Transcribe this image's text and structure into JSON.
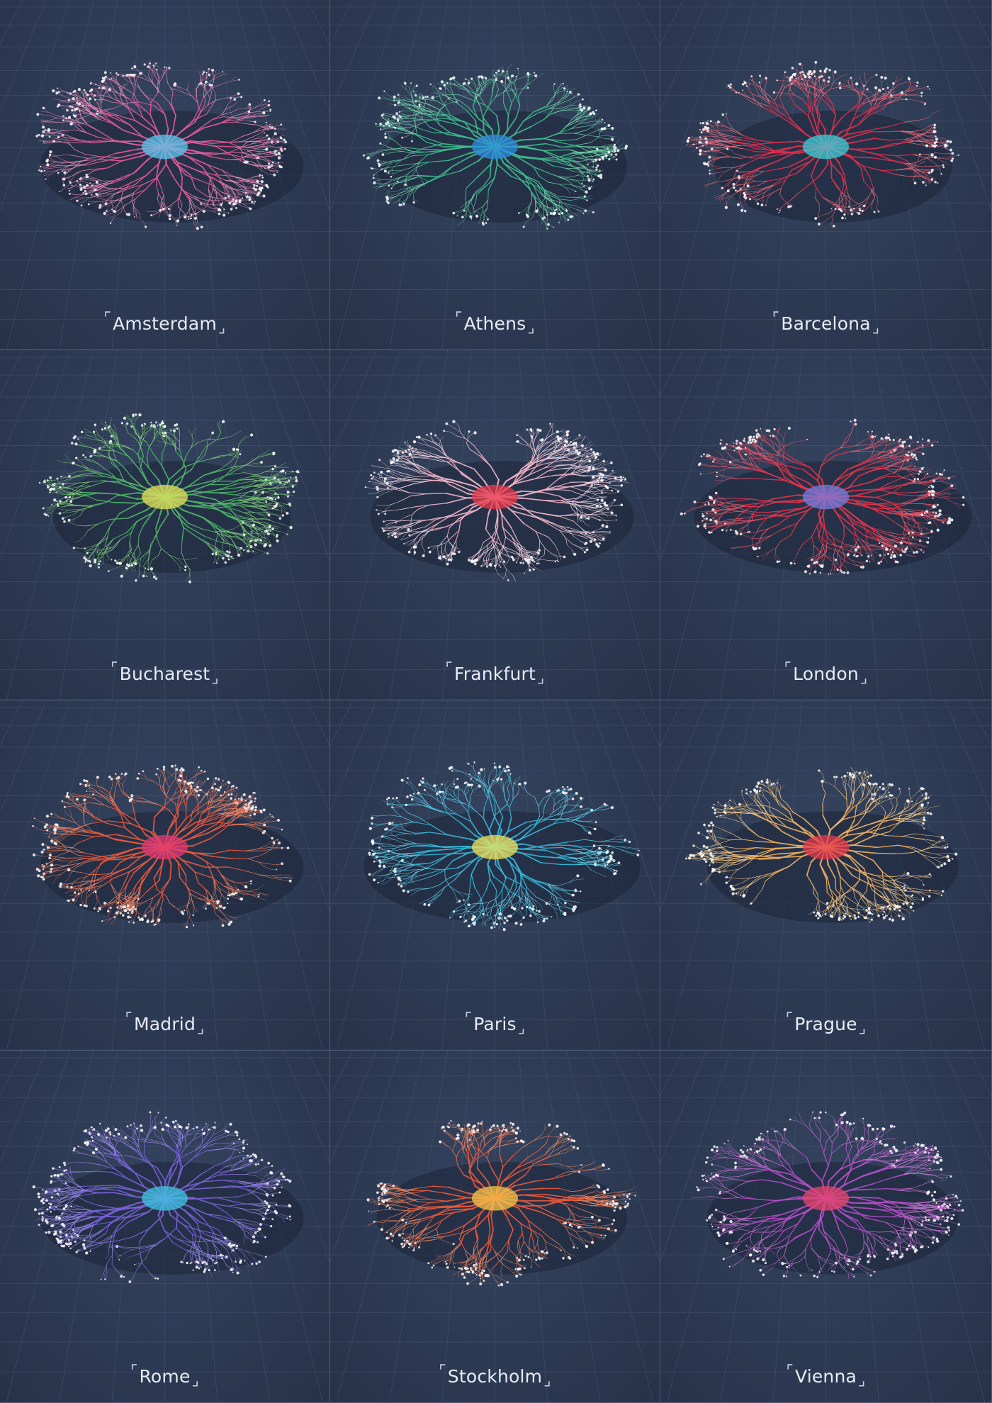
{
  "grid_line_color": "#4a5a78",
  "panels": [
    {
      "label": "Amsterdam",
      "colors": [
        "#e95a9c",
        "#f08bbd",
        "#5ac8ee"
      ],
      "spread": 1.0,
      "lean": 0.1
    },
    {
      "label": "Athens",
      "colors": [
        "#3fbf8f",
        "#6ed6a8",
        "#2f8fe0"
      ],
      "spread": 0.95,
      "lean": 0.0
    },
    {
      "label": "Barcelona",
      "colors": [
        "#e3304f",
        "#f26a7a",
        "#3ad0d8"
      ],
      "spread": 0.9,
      "lean": 0.0
    },
    {
      "label": "Bucharest",
      "colors": [
        "#4fb66a",
        "#7dce7a",
        "#e7e45a"
      ],
      "spread": 0.9,
      "lean": 0.0
    },
    {
      "label": "Frankfurt",
      "colors": [
        "#f3b5c9",
        "#fbd8e4",
        "#ec3a4c"
      ],
      "spread": 1.0,
      "lean": 0.0
    },
    {
      "label": "London",
      "colors": [
        "#e3344b",
        "#f0566a",
        "#7a7ee0"
      ],
      "spread": 1.05,
      "lean": 0.0
    },
    {
      "label": "Madrid",
      "colors": [
        "#f05a3c",
        "#f48060",
        "#e23a76"
      ],
      "spread": 1.0,
      "lean": 0.0
    },
    {
      "label": "Paris",
      "colors": [
        "#35b8d8",
        "#5fd1ec",
        "#f2e35c"
      ],
      "spread": 1.05,
      "lean": 0.0
    },
    {
      "label": "Prague",
      "colors": [
        "#f3b360",
        "#f8cb86",
        "#e53a4e"
      ],
      "spread": 0.95,
      "lean": 0.0
    },
    {
      "label": "Rome",
      "colors": [
        "#7a62d8",
        "#9583e6",
        "#3fc5e3"
      ],
      "spread": 1.0,
      "lean": 0.0
    },
    {
      "label": "Stockholm",
      "colors": [
        "#ee5b3c",
        "#f4855e",
        "#f7c648"
      ],
      "spread": 0.95,
      "lean": 0.0
    },
    {
      "label": "Vienna",
      "colors": [
        "#b64fc8",
        "#cc74d8",
        "#e9446d"
      ],
      "spread": 0.95,
      "lean": 0.0
    }
  ]
}
